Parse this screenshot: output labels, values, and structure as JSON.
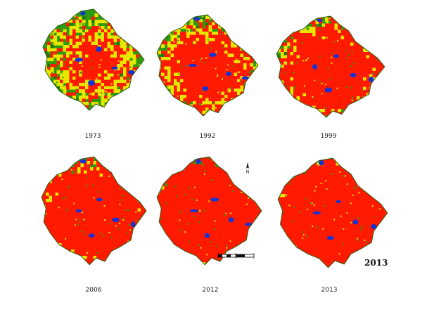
{
  "figure": {
    "panels": [
      {
        "year": "1973",
        "urban": 0.12,
        "transition": 0.28
      },
      {
        "year": "1992",
        "urban": 0.32,
        "transition": 0.3
      },
      {
        "year": "1999",
        "urban": 0.48,
        "transition": 0.26
      },
      {
        "year": "2006",
        "urban": 0.62,
        "transition": 0.22
      },
      {
        "year": "2012",
        "urban": 0.76,
        "transition": 0.12
      },
      {
        "year": "2013",
        "urban": 0.86,
        "transition": 0.08
      }
    ],
    "panel_stamp": "2013",
    "north_arrow_letter": "N",
    "colors": {
      "urban": "#ff1a00",
      "transition": "#e6e600",
      "vegetation": "#2e9a10",
      "vegetation_dark": "#1e7a0a",
      "water": "#1433d6",
      "boundary": "#2a5a12"
    }
  }
}
